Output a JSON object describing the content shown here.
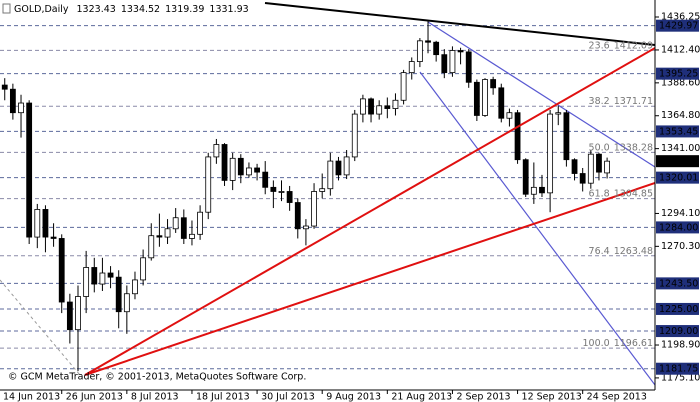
{
  "chart_data": {
    "type": "candlestick",
    "title": "GOLD,Daily",
    "footer": "© GCM MetaTrader, © 2001-2013, MetaQuotes Software Corp.",
    "categories": [
      "14 Jun 2013",
      null,
      null,
      null,
      null,
      null,
      null,
      null,
      "26 Jun 2013",
      null,
      null,
      null,
      null,
      null,
      null,
      null,
      "8 Jul 2013",
      null,
      null,
      null,
      null,
      null,
      null,
      null,
      "18 Jul 2013",
      null,
      null,
      null,
      null,
      null,
      null,
      null,
      "30 Jul 2013",
      null,
      null,
      null,
      null,
      null,
      null,
      null,
      "9 Aug 2013",
      null,
      null,
      null,
      null,
      null,
      null,
      null,
      "21 Aug 2013",
      null,
      null,
      null,
      null,
      null,
      null,
      null,
      "2 Sep 2013",
      null,
      null,
      null,
      null,
      null,
      null,
      null,
      "12 Sep 2013",
      null,
      null,
      null,
      null,
      null,
      null,
      null,
      "24 Sep 2013",
      null,
      null,
      null
    ],
    "open": [
      1389,
      1387,
      1384,
      1367,
      1374,
      1277,
      1297,
      1277,
      1276,
      1230,
      1210,
      1234,
      1255,
      1243,
      1251,
      1248,
      1223,
      1236,
      1246,
      1262,
      1278,
      1277,
      1283,
      1291,
      1276,
      1279,
      1295,
      1335,
      1344,
      1318,
      1334,
      1322,
      1327,
      1324,
      1313,
      1310,
      1310,
      1302,
      1283,
      1285,
      1310,
      1312,
      1332,
      1322,
      1335,
      1366,
      1377,
      1366,
      1372,
      1370,
      1376,
      1396,
      1404,
      1419,
      1418,
      1409,
      1396,
      1412,
      1411,
      1389,
      1365,
      1391,
      1385,
      1363,
      1367,
      1333,
      1308,
      1313,
      1309,
      1366,
      1367,
      1333,
      1323,
      1316,
      1337,
      1323.43
    ],
    "high": [
      1395,
      1392,
      1388,
      1380,
      1376,
      1301,
      1300,
      1287,
      1279,
      1236,
      1242,
      1267,
      1262,
      1262,
      1256,
      1253,
      1242,
      1252,
      1268,
      1287,
      1294,
      1290,
      1298,
      1297,
      1289,
      1300,
      1338,
      1348,
      1345,
      1338,
      1337,
      1331,
      1330,
      1332,
      1318,
      1318,
      1314,
      1305,
      1290,
      1316,
      1323,
      1338,
      1335,
      1340,
      1369,
      1380,
      1378,
      1376,
      1378,
      1381,
      1398,
      1407,
      1421,
      1434,
      1419,
      1413,
      1415,
      1414,
      1413,
      1391,
      1392,
      1393,
      1388,
      1370,
      1369,
      1334,
      1331,
      1322,
      1369,
      1372,
      1369,
      1334,
      1327,
      1340,
      1338,
      1334.52
    ],
    "low": [
      1380,
      1376,
      1362,
      1349,
      1272,
      1269,
      1266,
      1270,
      1222,
      1200,
      1180,
      1222,
      1237,
      1238,
      1240,
      1211,
      1207,
      1232,
      1242,
      1260,
      1270,
      1272,
      1280,
      1272,
      1271,
      1275,
      1290,
      1330,
      1314,
      1311,
      1316,
      1320,
      1318,
      1308,
      1298,
      1303,
      1296,
      1276,
      1271,
      1283,
      1305,
      1307,
      1318,
      1319,
      1332,
      1360,
      1360,
      1362,
      1363,
      1365,
      1373,
      1391,
      1400,
      1410,
      1404,
      1392,
      1393,
      1402,
      1385,
      1361,
      1364,
      1380,
      1360,
      1357,
      1330,
      1306,
      1301,
      1306,
      1295,
      1358,
      1328,
      1318,
      1310,
      1312,
      1318,
      1319.39
    ],
    "close": [
      1387,
      1384,
      1367,
      1374,
      1277,
      1297,
      1277,
      1276,
      1230,
      1210,
      1234,
      1255,
      1243,
      1251,
      1248,
      1223,
      1236,
      1246,
      1262,
      1278,
      1277,
      1283,
      1291,
      1276,
      1279,
      1295,
      1335,
      1344,
      1318,
      1334,
      1322,
      1327,
      1324,
      1313,
      1310,
      1310,
      1302,
      1283,
      1285,
      1310,
      1312,
      1332,
      1322,
      1335,
      1366,
      1377,
      1366,
      1372,
      1370,
      1376,
      1396,
      1404,
      1419,
      1418,
      1409,
      1396,
      1412,
      1411,
      1389,
      1365,
      1391,
      1385,
      1363,
      1367,
      1333,
      1308,
      1313,
      1309,
      1366,
      1367,
      1333,
      1323,
      1316,
      1337,
      1324,
      1331.93
    ],
    "up_color": "#ffffff",
    "down_color": "#000000",
    "ylim": [
      1166.35,
      1448.55
    ],
    "yticks": [
      1436.25,
      {
        "value": 1412.4,
        "label": "1412.40"
      },
      {
        "value": 1388.6,
        "label": "1388.60"
      },
      {
        "value": 1364.8,
        "label": "1364.80"
      },
      {
        "value": 1341,
        "label": "1341.00"
      },
      {
        "value": 1294.1,
        "label": "1294.10"
      },
      {
        "value": 1270.3,
        "label": "1270.30"
      },
      {
        "value": 1198.9,
        "label": "1198.90"
      },
      {
        "value": 1175.1,
        "label": "1175.10"
      }
    ],
    "levels": [
      1429.97,
      1395.25,
      1353.45,
      1320.01,
      {
        "value": 1284,
        "label": "1284.00"
      },
      {
        "value": 1243.5,
        "label": "1243.50"
      },
      {
        "value": 1225,
        "label": "1225.00"
      },
      {
        "value": 1209,
        "label": "1209.00"
      },
      1181.75
    ],
    "fibonacci": [
      {
        "level": "23.6",
        "value": 1412.09
      },
      {
        "level": "38.2",
        "value": 1371.71
      },
      {
        "level": "50.0",
        "value": 1338.28
      },
      {
        "level": "61.8",
        "value": 1304.85
      },
      {
        "level": "76.4",
        "value": 1263.48
      },
      {
        "level": "100.0",
        "value": 1196.61
      }
    ]
  }
}
